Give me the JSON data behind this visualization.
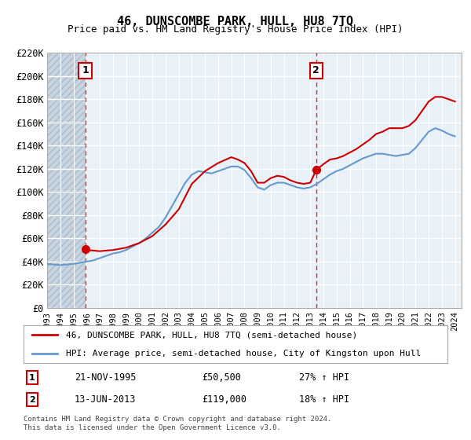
{
  "title": "46, DUNSCOMBE PARK, HULL, HU8 7TQ",
  "subtitle": "Price paid vs. HM Land Registry's House Price Index (HPI)",
  "legend_line1": "46, DUNSCOMBE PARK, HULL, HU8 7TQ (semi-detached house)",
  "legend_line2": "HPI: Average price, semi-detached house, City of Kingston upon Hull",
  "footnote": "Contains HM Land Registry data © Crown copyright and database right 2024.\nThis data is licensed under the Open Government Licence v3.0.",
  "annotation1_label": "1",
  "annotation1_date": "21-NOV-1995",
  "annotation1_price": "£50,500",
  "annotation1_hpi": "27% ↑ HPI",
  "annotation2_label": "2",
  "annotation2_date": "13-JUN-2013",
  "annotation2_price": "£119,000",
  "annotation2_hpi": "18% ↑ HPI",
  "ylim": [
    0,
    220000
  ],
  "yticks": [
    0,
    20000,
    40000,
    60000,
    80000,
    100000,
    120000,
    140000,
    160000,
    180000,
    200000,
    220000
  ],
  "ytick_labels": [
    "£0",
    "£20K",
    "£40K",
    "£60K",
    "£80K",
    "£100K",
    "£120K",
    "£140K",
    "£160K",
    "£180K",
    "£200K",
    "£220K"
  ],
  "bg_color": "#e8f0f8",
  "hatch_color": "#c8d4e0",
  "grid_color": "#ffffff",
  "red_color": "#cc0000",
  "blue_color": "#6699cc",
  "point1_x": 1995.9,
  "point1_y": 50500,
  "point2_x": 2013.45,
  "point2_y": 119000,
  "hpi_data_x": [
    1993.0,
    1993.5,
    1994.0,
    1994.5,
    1995.0,
    1995.5,
    1996.0,
    1996.5,
    1997.0,
    1997.5,
    1998.0,
    1998.5,
    1999.0,
    1999.5,
    2000.0,
    2000.5,
    2001.0,
    2001.5,
    2002.0,
    2002.5,
    2003.0,
    2003.5,
    2004.0,
    2004.5,
    2005.0,
    2005.5,
    2006.0,
    2006.5,
    2007.0,
    2007.5,
    2008.0,
    2008.5,
    2009.0,
    2009.5,
    2010.0,
    2010.5,
    2011.0,
    2011.5,
    2012.0,
    2012.5,
    2013.0,
    2013.5,
    2014.0,
    2014.5,
    2015.0,
    2015.5,
    2016.0,
    2016.5,
    2017.0,
    2017.5,
    2018.0,
    2018.5,
    2019.0,
    2019.5,
    2020.0,
    2020.5,
    2021.0,
    2021.5,
    2022.0,
    2022.5,
    2023.0,
    2023.5,
    2024.0
  ],
  "hpi_data_y": [
    38000,
    37500,
    37000,
    37500,
    38000,
    39000,
    40000,
    41000,
    43000,
    45000,
    47000,
    48000,
    50000,
    53000,
    56000,
    60000,
    65000,
    70000,
    78000,
    88000,
    98000,
    108000,
    115000,
    118000,
    117000,
    116000,
    118000,
    120000,
    122000,
    122000,
    119000,
    112000,
    104000,
    102000,
    106000,
    108000,
    108000,
    106000,
    104000,
    103000,
    104000,
    107000,
    111000,
    115000,
    118000,
    120000,
    123000,
    126000,
    129000,
    131000,
    133000,
    133000,
    132000,
    131000,
    132000,
    133000,
    138000,
    145000,
    152000,
    155000,
    153000,
    150000,
    148000
  ],
  "red_data_x": [
    1995.9,
    1996.0,
    1997.0,
    1998.0,
    1999.0,
    2000.0,
    2001.0,
    2002.0,
    2003.0,
    2004.0,
    2005.0,
    2006.0,
    2007.0,
    2007.5,
    2008.0,
    2008.5,
    2009.0,
    2009.5,
    2010.0,
    2010.5,
    2011.0,
    2011.5,
    2012.0,
    2012.5,
    2013.0,
    2013.45,
    2014.0,
    2014.5,
    2015.0,
    2015.5,
    2016.0,
    2016.5,
    2017.0,
    2017.5,
    2018.0,
    2018.5,
    2019.0,
    2019.5,
    2020.0,
    2020.5,
    2021.0,
    2021.5,
    2022.0,
    2022.5,
    2023.0,
    2023.5,
    2024.0
  ],
  "red_data_y": [
    50500,
    50000,
    49000,
    50000,
    52000,
    56000,
    62000,
    72000,
    85000,
    107000,
    118000,
    125000,
    130000,
    128000,
    125000,
    118000,
    108000,
    108000,
    112000,
    114000,
    113000,
    110000,
    108000,
    107000,
    108000,
    119000,
    124000,
    128000,
    129000,
    131000,
    134000,
    137000,
    141000,
    145000,
    150000,
    152000,
    155000,
    155000,
    155000,
    157000,
    162000,
    170000,
    178000,
    182000,
    182000,
    180000,
    178000
  ],
  "xticks": [
    1993,
    1994,
    1995,
    1996,
    1997,
    1998,
    1999,
    2000,
    2001,
    2002,
    2003,
    2004,
    2005,
    2006,
    2007,
    2008,
    2009,
    2010,
    2011,
    2012,
    2013,
    2014,
    2015,
    2016,
    2017,
    2018,
    2019,
    2020,
    2021,
    2022,
    2023,
    2024
  ],
  "xlim": [
    1993.0,
    2024.5
  ]
}
